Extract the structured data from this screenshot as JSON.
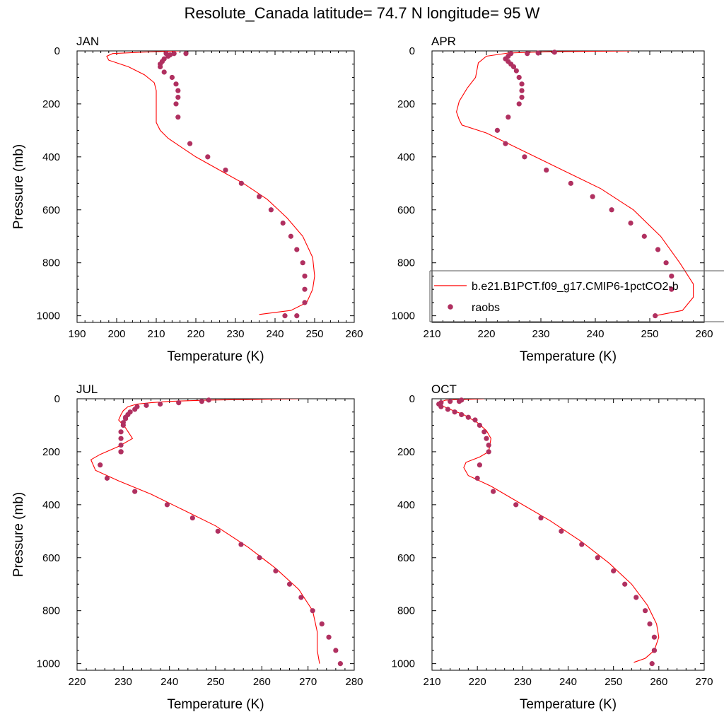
{
  "title": "Resolute_Canada  latitude= 74.7 N longitude= 95 W",
  "colors": {
    "model": "#ff0000",
    "obs": "#b03060",
    "axis": "#000000"
  },
  "legend": {
    "placement": "APR panel, lower right (extends past figure edge)",
    "model_label": "b.e21.B1PCT.f09_g17.CMIP6-1pctCO2-b",
    "obs_label": "raobs"
  },
  "chart_data": [
    {
      "type": "line",
      "panel_title": "JAN",
      "xlabel": "Temperature (K)",
      "ylabel": "Pressure (mb)",
      "xlim": [
        190,
        260
      ],
      "ylim": [
        1025,
        0
      ],
      "xticks": [
        190,
        200,
        210,
        220,
        230,
        240,
        250,
        260
      ],
      "yticks": [
        0,
        200,
        400,
        600,
        800,
        1000
      ],
      "series": [
        {
          "name": "b.e21.B1PCT.f09_g17.CMIP6-1pctCO2-b",
          "kind": "line",
          "x": [
            216,
            208,
            199,
            197.5,
            198,
            203,
            207,
            209.5,
            210,
            210,
            210,
            210,
            211,
            213,
            216,
            220,
            226,
            232,
            238,
            243,
            247,
            249.5,
            250,
            249.5,
            248,
            244,
            236
          ],
          "y": [
            0,
            4,
            10,
            20,
            35,
            60,
            90,
            120,
            150,
            200,
            250,
            270,
            300,
            330,
            360,
            400,
            450,
            500,
            560,
            630,
            700,
            780,
            850,
            900,
            950,
            980,
            995
          ]
        },
        {
          "name": "raobs",
          "kind": "scatter",
          "x": [
            217.5,
            214.5,
            212.5,
            213.5,
            213,
            212,
            211.5,
            211,
            211,
            212,
            214,
            215,
            215.5,
            215.5,
            215,
            215.5,
            218.5,
            223,
            227.5,
            231.5,
            236,
            239,
            242,
            244,
            245.5,
            247,
            247.5,
            247.5,
            247.5,
            245.5,
            242.5
          ],
          "y": [
            10,
            10,
            10,
            15,
            20,
            30,
            40,
            50,
            60,
            80,
            100,
            125,
            150,
            175,
            200,
            250,
            350,
            400,
            450,
            500,
            550,
            600,
            650,
            700,
            750,
            800,
            850,
            900,
            950,
            1000,
            1000
          ]
        }
      ]
    },
    {
      "type": "line",
      "panel_title": "APR",
      "xlabel": "Temperature (K)",
      "ylabel": "",
      "xlim": [
        210,
        260
      ],
      "ylim": [
        1025,
        0
      ],
      "xticks": [
        210,
        220,
        230,
        240,
        250,
        260
      ],
      "yticks": [
        0,
        200,
        400,
        600,
        800,
        1000
      ],
      "series": [
        {
          "name": "b.e21.B1PCT.f09_g17.CMIP6-1pctCO2-b",
          "kind": "line",
          "x": [
            246.5,
            232,
            224,
            220,
            218.5,
            218,
            216.5,
            215,
            214.5,
            215,
            215.5,
            220,
            227,
            234,
            241,
            247,
            252,
            255.5,
            258,
            258,
            256,
            251
          ],
          "y": [
            0,
            3,
            8,
            20,
            45,
            100,
            140,
            190,
            230,
            260,
            280,
            310,
            380,
            450,
            520,
            600,
            700,
            800,
            880,
            930,
            980,
            1000
          ],
          "note": "approximate"
        },
        {
          "name": "raobs",
          "kind": "scatter",
          "x": [
            232.5,
            229.5,
            227.5,
            224.5,
            224,
            223.5,
            224,
            224.5,
            225,
            225.5,
            226,
            226.5,
            226.5,
            226.5,
            226,
            224,
            222,
            223.5,
            227,
            231,
            235.5,
            239.5,
            243,
            246.5,
            249,
            251.5,
            253,
            254,
            254,
            251
          ],
          "y": [
            5,
            8,
            10,
            10,
            20,
            30,
            40,
            50,
            60,
            75,
            100,
            125,
            150,
            175,
            200,
            250,
            300,
            350,
            400,
            450,
            500,
            550,
            600,
            650,
            700,
            750,
            800,
            850,
            900,
            1000
          ]
        }
      ]
    },
    {
      "type": "line",
      "panel_title": "JUL",
      "xlabel": "Temperature (K)",
      "ylabel": "Pressure (mb)",
      "xlim": [
        220,
        280
      ],
      "ylim": [
        1025,
        0
      ],
      "xticks": [
        220,
        230,
        240,
        250,
        260,
        270,
        280
      ],
      "yticks": [
        0,
        200,
        400,
        600,
        800,
        1000
      ],
      "series": [
        {
          "name": "b.e21.B1PCT.f09_g17.CMIP6-1pctCO2-b",
          "kind": "line",
          "x": [
            268,
            248,
            240,
            236,
            233,
            231,
            230,
            229.5,
            229,
            230.5,
            232,
            229,
            225,
            223,
            224,
            229,
            236,
            243,
            250,
            257,
            263,
            268,
            271,
            272,
            272,
            272.5
          ],
          "y": [
            0,
            5,
            10,
            15,
            20,
            30,
            45,
            60,
            80,
            110,
            150,
            180,
            210,
            230,
            270,
            310,
            360,
            420,
            480,
            560,
            640,
            720,
            800,
            880,
            950,
            1000
          ]
        },
        {
          "name": "raobs",
          "kind": "scatter",
          "x": [
            248.5,
            247,
            242,
            238,
            235,
            233,
            232.5,
            231.5,
            231,
            230.5,
            230.5,
            230,
            230,
            229.5,
            229.5,
            229.5,
            229.5,
            229.5,
            229.5,
            229.5,
            225,
            226.5,
            232.5,
            239.5,
            245,
            250.5,
            255.5,
            259.5,
            263,
            266,
            268.5,
            271,
            273,
            274.5,
            276,
            277
          ],
          "y": [
            5,
            10,
            15,
            20,
            25,
            30,
            40,
            50,
            60,
            70,
            75,
            90,
            100,
            125,
            150,
            175,
            200,
            200,
            200,
            200,
            250,
            300,
            350,
            400,
            450,
            500,
            550,
            600,
            650,
            700,
            750,
            800,
            850,
            900,
            950,
            1000
          ]
        }
      ]
    },
    {
      "type": "line",
      "panel_title": "OCT",
      "xlabel": "Temperature (K)",
      "ylabel": "",
      "xlim": [
        210,
        270
      ],
      "ylim": [
        1025,
        0
      ],
      "xticks": [
        210,
        220,
        230,
        240,
        250,
        260,
        270
      ],
      "yticks": [
        0,
        200,
        400,
        600,
        800,
        1000
      ],
      "series": [
        {
          "name": "b.e21.B1PCT.f09_g17.CMIP6-1pctCO2-b",
          "kind": "line",
          "x": [
            221.5,
            213,
            211.5,
            212,
            214,
            217,
            220,
            222,
            223,
            222.5,
            220.5,
            217.5,
            217,
            218,
            223,
            229,
            236,
            243,
            249,
            254,
            257.5,
            259.5,
            260,
            259,
            257,
            254.5
          ],
          "y": [
            0,
            5,
            15,
            25,
            40,
            60,
            90,
            120,
            150,
            200,
            220,
            240,
            260,
            290,
            330,
            390,
            460,
            540,
            620,
            700,
            780,
            850,
            900,
            950,
            980,
            995
          ]
        },
        {
          "name": "raobs",
          "kind": "scatter",
          "x": [
            216.5,
            216,
            214,
            212,
            211.5,
            212,
            213.5,
            215,
            216.5,
            218,
            219.5,
            220.5,
            221.5,
            222,
            222.5,
            222.5,
            220.5,
            220,
            223.5,
            228.5,
            234,
            238.5,
            243,
            246.5,
            250,
            252.5,
            255,
            257,
            258,
            259,
            259,
            259,
            258.5
          ],
          "y": [
            5,
            10,
            10,
            15,
            20,
            30,
            40,
            50,
            60,
            70,
            80,
            100,
            125,
            150,
            175,
            200,
            250,
            300,
            350,
            400,
            450,
            500,
            550,
            600,
            650,
            700,
            750,
            800,
            850,
            900,
            950,
            950,
            1000
          ]
        }
      ]
    }
  ]
}
